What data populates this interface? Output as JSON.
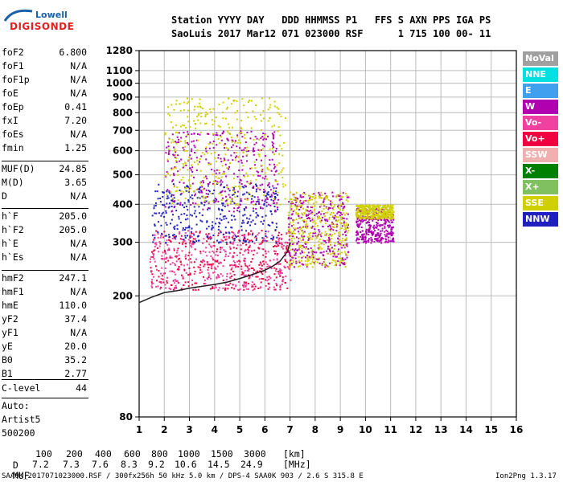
{
  "logo": {
    "top_text": "Lowell",
    "bottom_text": "DIGISONDE"
  },
  "header": {
    "line1": "Station YYYY DAY   DDD HHMMSS P1   FFS S AXN PPS IGA PS",
    "line2": "SaoLuis 2017 Mar12 071 023000 RSF      1 715 100 00- 11"
  },
  "params_group1": [
    {
      "k": "foF2",
      "v": "6.800"
    },
    {
      "k": "foF1",
      "v": "N/A"
    },
    {
      "k": "foF1p",
      "v": "N/A"
    },
    {
      "k": "foE",
      "v": "N/A"
    },
    {
      "k": "foEp",
      "v": "0.41"
    },
    {
      "k": "fxI",
      "v": "7.20"
    },
    {
      "k": "foEs",
      "v": "N/A"
    },
    {
      "k": "fmin",
      "v": "1.25"
    }
  ],
  "params_group2": [
    {
      "k": "MUF(D)",
      "v": "24.85"
    },
    {
      "k": "M(D)",
      "v": "3.65"
    },
    {
      "k": "D",
      "v": "N/A"
    }
  ],
  "params_group3": [
    {
      "k": "h`F",
      "v": "205.0"
    },
    {
      "k": "h`F2",
      "v": "205.0"
    },
    {
      "k": "h`E",
      "v": "N/A"
    },
    {
      "k": "h`Es",
      "v": "N/A"
    }
  ],
  "params_group4": [
    {
      "k": "hmF2",
      "v": "247.1"
    },
    {
      "k": "hmF1",
      "v": "N/A"
    },
    {
      "k": "hmE",
      "v": "110.0"
    },
    {
      "k": "yF2",
      "v": "37.4"
    },
    {
      "k": "yF1",
      "v": "N/A"
    },
    {
      "k": "yE",
      "v": "20.0"
    },
    {
      "k": "B0",
      "v": "35.2"
    },
    {
      "k": "B1",
      "v": "2.77"
    }
  ],
  "clevel": {
    "k": "C-level",
    "v": "44"
  },
  "auto": {
    "l1": "Auto:",
    "l2": "Artist5",
    "l3": "500200"
  },
  "legend": [
    {
      "label": "NoVal",
      "color": "#a0a0a0"
    },
    {
      "label": "NNE",
      "color": "#00e0e0"
    },
    {
      "label": "E",
      "color": "#40a0f0"
    },
    {
      "label": "W",
      "color": "#b000b0"
    },
    {
      "label": "Vo-",
      "color": "#f040a0"
    },
    {
      "label": "Vo+",
      "color": "#f00040"
    },
    {
      "label": "SSW",
      "color": "#f0b0b0"
    },
    {
      "label": "X-",
      "color": "#008000"
    },
    {
      "label": "X+",
      "color": "#80c060"
    },
    {
      "label": "SSE",
      "color": "#d0d000"
    },
    {
      "label": "NNW",
      "color": "#2020c0"
    }
  ],
  "muf_table": {
    "d_label": "D",
    "muf_label": "MUF",
    "d_values": [
      "100",
      "200",
      "400",
      "600",
      "800",
      "1000",
      "1500",
      "3000"
    ],
    "d_unit": "[km]",
    "muf_values": [
      "7.2",
      "7.3",
      "7.6",
      "8.3",
      "9.2",
      "10.6",
      "14.5",
      "24.9"
    ],
    "muf_unit": "[MHz]"
  },
  "footer": {
    "left": "SAA0K_2017071023000.RSF / 300fx256h 50 kHz 5.0 km / DPS-4 SAA0K 903 / 2.6 S 315.8 E",
    "right": "Ion2Png 1.3.17"
  },
  "chart_data": {
    "type": "scatter",
    "title": "",
    "xlabel": "",
    "ylabel": "",
    "xlim": [
      1,
      16
    ],
    "ylim": [
      80,
      1280
    ],
    "xticks": [
      1,
      2,
      3,
      4,
      5,
      6,
      7,
      8,
      9,
      10,
      11,
      12,
      13,
      14,
      15,
      16
    ],
    "yticks": [
      80,
      200,
      300,
      400,
      500,
      600,
      700,
      800,
      900,
      1000,
      1100,
      1280
    ],
    "y_scale": "log",
    "grid": true,
    "trace": {
      "name": "",
      "color": "#202020",
      "x": [
        1.0,
        1.5,
        2.0,
        2.5,
        3.0,
        3.5,
        4.0,
        4.5,
        5.0,
        5.5,
        6.0,
        6.3,
        6.6,
        6.9,
        7.0
      ],
      "y": [
        190,
        198,
        205,
        208,
        212,
        215,
        218,
        222,
        228,
        235,
        243,
        250,
        260,
        280,
        300
      ]
    },
    "echo_clusters": [
      {
        "x": [
          1.4,
          7.0
        ],
        "y": [
          210,
          330
        ],
        "color": "#f00040"
      },
      {
        "x": [
          1.4,
          7.0
        ],
        "y": [
          210,
          330
        ],
        "color": "#f040a0"
      },
      {
        "x": [
          1.5,
          6.5
        ],
        "y": [
          300,
          470
        ],
        "color": "#2020c0"
      },
      {
        "x": [
          2.0,
          6.5
        ],
        "y": [
          380,
          700
        ],
        "color": "#b000b0"
      },
      {
        "x": [
          2.0,
          6.8
        ],
        "y": [
          400,
          900
        ],
        "color": "#d0d000"
      },
      {
        "x": [
          6.9,
          9.3
        ],
        "y": [
          250,
          440
        ],
        "color": "#b000b0"
      },
      {
        "x": [
          6.9,
          9.3
        ],
        "y": [
          250,
          440
        ],
        "color": "#d0d000"
      },
      {
        "x": [
          9.6,
          11.1
        ],
        "y": [
          300,
          390
        ],
        "color": "#b000b0"
      },
      {
        "x": [
          9.6,
          11.1
        ],
        "y": [
          360,
          400
        ],
        "color": "#d0d000"
      }
    ]
  }
}
